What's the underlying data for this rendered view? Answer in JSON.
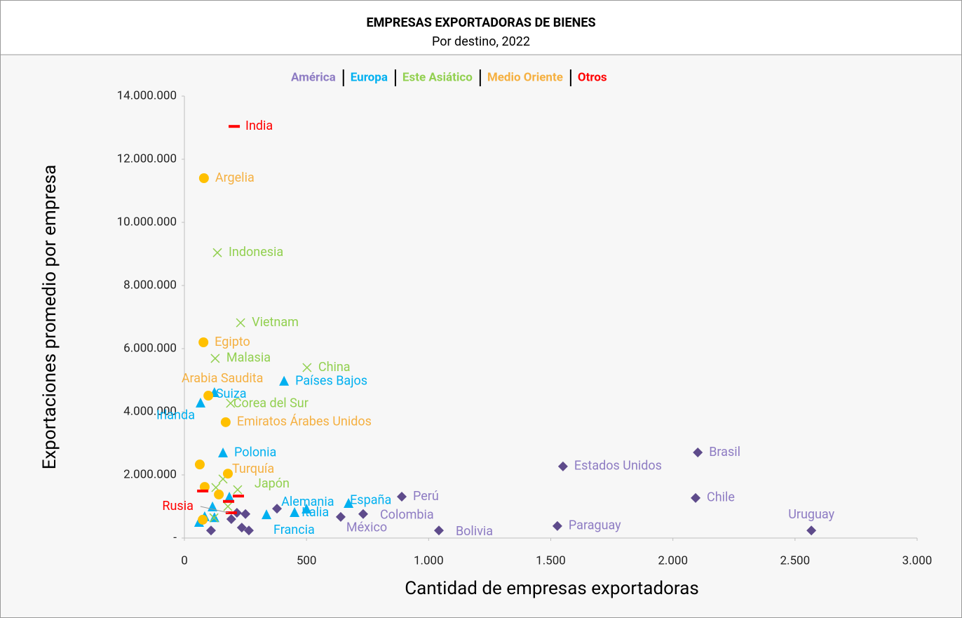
{
  "chart_data": {
    "type": "scatter",
    "title": "EMPRESAS EXPORTADORAS DE BIENES",
    "subtitle": "Por destino, 2022",
    "x_label": "Cantidad de empresas exportadoras",
    "y_label": "Exportaciones promedio por empresa",
    "xlim": [
      0,
      3000
    ],
    "xticks": [
      0,
      500,
      {
        "value": 1000,
        "label": "1.000"
      },
      {
        "value": 1500,
        "label": "1.500"
      },
      {
        "value": 2000,
        "label": "2.000"
      },
      {
        "value": 2500,
        "label": "2.500"
      },
      {
        "value": 3000,
        "label": "3.000"
      }
    ],
    "ylim": [
      0,
      14000000
    ],
    "yticks": [
      {
        "value": 0,
        "label": "-"
      },
      {
        "value": 2000000,
        "label": "2.000.000"
      },
      {
        "value": 4000000,
        "label": "4.000.000"
      },
      {
        "value": 6000000,
        "label": "6.000.000"
      },
      {
        "value": 8000000,
        "label": "8.000.000"
      },
      {
        "value": 10000000,
        "label": "10.000.000"
      },
      {
        "value": 12000000,
        "label": "12.000.000"
      },
      {
        "value": 14000000,
        "label": "14.000.000"
      }
    ],
    "grid": false,
    "series": [
      {
        "name": "América",
        "color": "#8e7cc3",
        "marker_color": "#5e4b8b",
        "marker": "diamond",
        "x": [
          2102,
          1550,
          2093,
          890,
          2567,
          1527,
          1042,
          732,
          640,
          379,
          235,
          264,
          250,
          192,
          109,
          215
        ],
        "values": [
          2710000,
          2270000,
          1270000,
          1310000,
          240000,
          380000,
          240000,
          760000,
          670000,
          930000,
          330000,
          240000,
          760000,
          600000,
          240000,
          800000
        ],
        "labels": [
          "Brasil",
          "Estados Unidos",
          "Chile",
          "Perú",
          "Uruguay",
          "Paraguay",
          "Bolivia",
          "Colombia",
          "México",
          null,
          null,
          null,
          null,
          null,
          null,
          null
        ]
      },
      {
        "name": "Europa",
        "color": "#00b0f0",
        "marker_color": "#00b0f0",
        "marker": "triangle",
        "x": [
          408,
          123,
          66,
          158,
          500,
          451,
          672,
          336,
          184,
          115,
          83,
          123,
          60
        ],
        "values": [
          4960000,
          4600000,
          4270000,
          2690000,
          910000,
          800000,
          1090000,
          730000,
          1290000,
          980000,
          670000,
          640000,
          490000
        ],
        "labels": [
          "Países Bajos",
          "Suiza",
          "Irlanda",
          "Polonia",
          "Alemania",
          "Italia",
          "España",
          "Francia",
          null,
          null,
          null,
          null,
          null
        ]
      },
      {
        "name": "Este Asiático",
        "color": "#92d050",
        "marker_color": "#92d050",
        "marker": "x",
        "x": [
          135,
          230,
          126,
          502,
          189,
          218,
          158,
          129,
          178,
          121
        ],
        "values": [
          9040000,
          6820000,
          5690000,
          5400000,
          4270000,
          1530000,
          1870000,
          1600000,
          1000000,
          640000
        ],
        "labels": [
          "Indonesia",
          "Vietnam",
          "Malasia",
          "China",
          "Corea del Sur",
          "Japón",
          null,
          null,
          null,
          null
        ]
      },
      {
        "name": "Medio Oriente",
        "color": "#f5b041",
        "marker_color": "#ffc000",
        "marker": "circle",
        "x": [
          80,
          78,
          98,
          169,
          178,
          63,
          83,
          141,
          75
        ],
        "values": [
          11400000,
          6200000,
          4510000,
          3670000,
          2040000,
          2330000,
          1620000,
          1380000,
          580000
        ],
        "labels": [
          "Argelia",
          "Egipto",
          "Arabia Saudita",
          "Emiratos Árabes Unidos",
          "Turquía",
          null,
          null,
          null,
          null
        ]
      },
      {
        "name": "Otros",
        "color": "#ff0000",
        "marker_color": "#ff0000",
        "marker": "dash",
        "x": [
          204,
          192,
          75,
          181,
          221
        ],
        "values": [
          13040000,
          800000,
          1490000,
          1160000,
          1330000
        ],
        "labels": [
          "India",
          "Rusia",
          null,
          null,
          null
        ]
      }
    ]
  }
}
